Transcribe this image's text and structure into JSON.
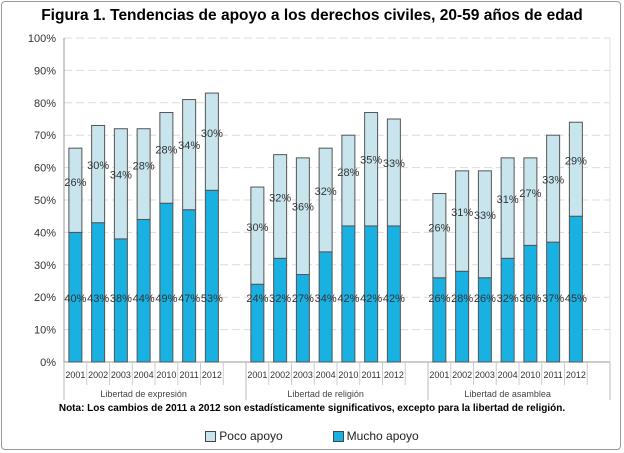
{
  "chart_data": {
    "type": "bar",
    "stacked": true,
    "title": "Figura 1. Tendencias de apoyo a los derechos civiles, 20-59 años de edad",
    "note": "Nota: Los cambios de 2011 a 2012 son estadísticamente significativos, excepto para la libertad de religión.",
    "ylim": [
      0,
      100
    ],
    "yticks": [
      "0%",
      "10%",
      "20%",
      "30%",
      "40%",
      "50%",
      "60%",
      "70%",
      "80%",
      "90%",
      "100%"
    ],
    "grid": true,
    "legend_position": "bottom",
    "groups": [
      {
        "label": "Libertad de expresión",
        "categories": [
          "2001",
          "2002",
          "2003",
          "2004",
          "2010",
          "2011",
          "2012"
        ]
      },
      {
        "label": "Libertad de religión",
        "categories": [
          "2001",
          "2002",
          "2003",
          "2004",
          "2010",
          "2011",
          "2012"
        ]
      },
      {
        "label": "Libertad de asamblea",
        "categories": [
          "2001",
          "2002",
          "2003",
          "2004",
          "2010",
          "2011",
          "2012"
        ]
      }
    ],
    "series": [
      {
        "name": "Mucho apoyo",
        "color": "#19b0e2",
        "values": [
          [
            40,
            43,
            38,
            44,
            49,
            47,
            53
          ],
          [
            24,
            32,
            27,
            34,
            42,
            42,
            42
          ],
          [
            26,
            28,
            26,
            32,
            36,
            37,
            45
          ]
        ]
      },
      {
        "name": "Poco apoyo",
        "color": "#c8e5ee",
        "values": [
          [
            26,
            30,
            34,
            28,
            28,
            34,
            30
          ],
          [
            30,
            32,
            36,
            32,
            28,
            35,
            33
          ],
          [
            26,
            31,
            33,
            31,
            27,
            33,
            29
          ]
        ]
      }
    ]
  }
}
